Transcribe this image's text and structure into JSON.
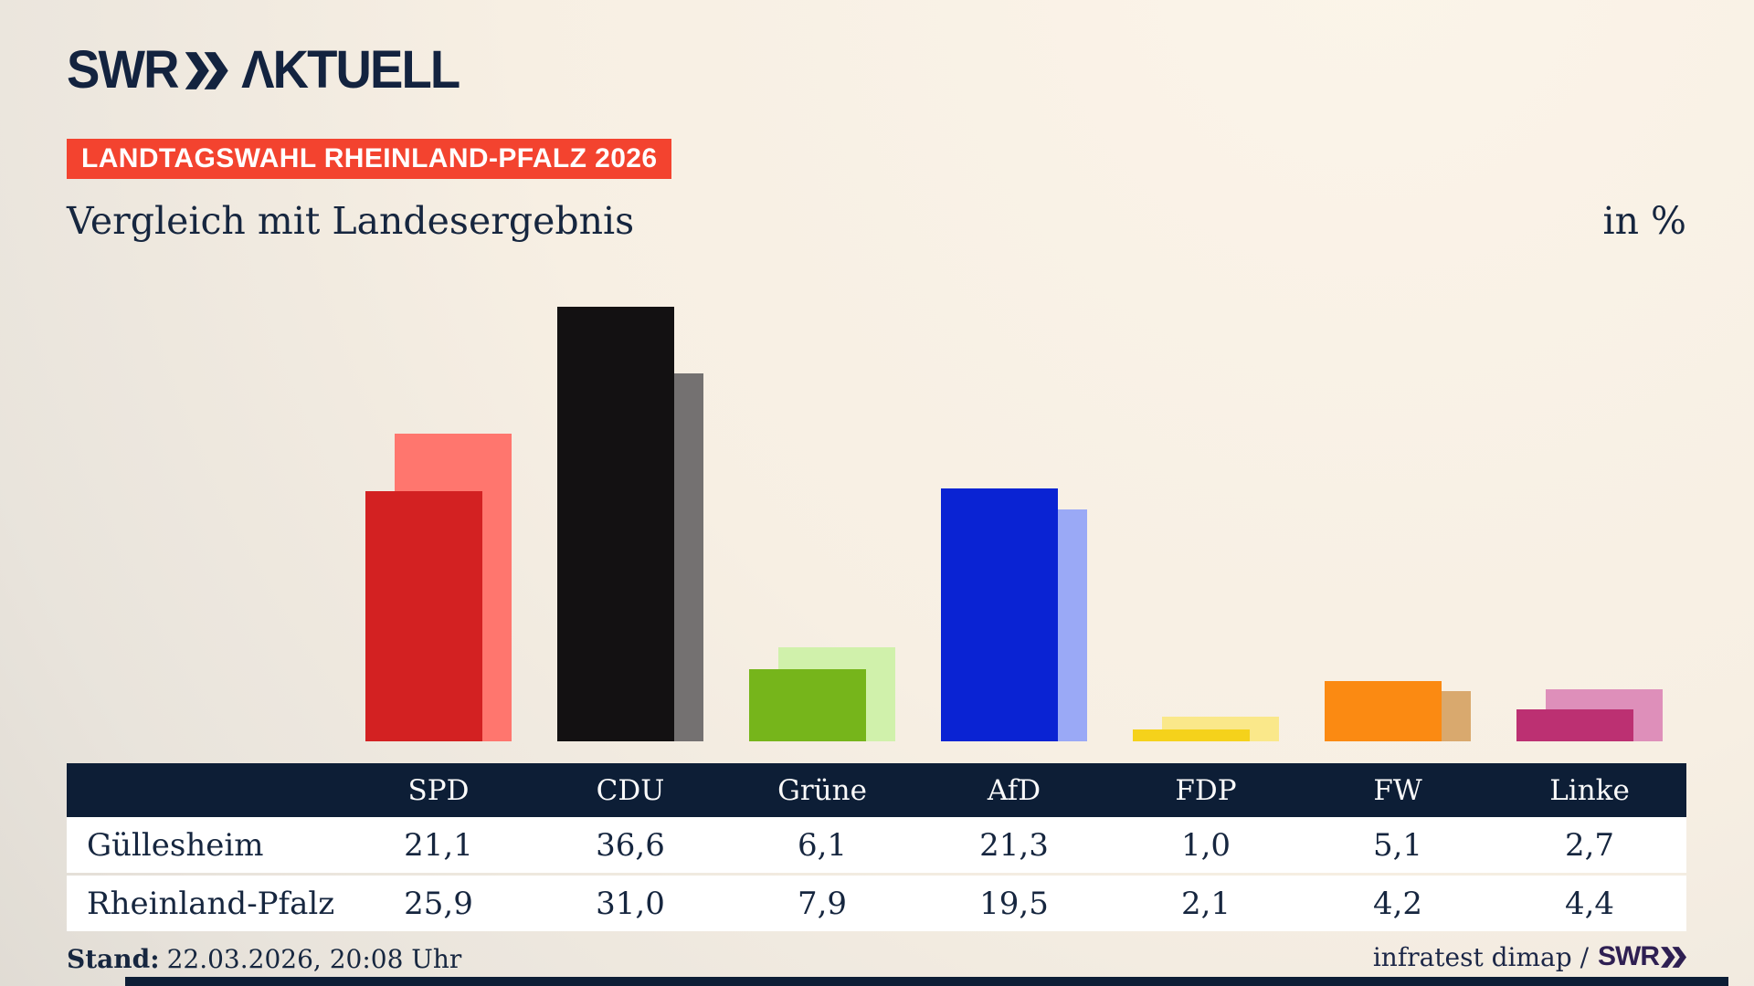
{
  "brand": {
    "name": "SWR",
    "suffix": "ΛKTUELL"
  },
  "badge": {
    "label": "LANDTAGSWAHL RHEINLAND-PFALZ 2026"
  },
  "title": "Vergleich mit Landesergebnis",
  "unit_label": "in %",
  "chart_data": {
    "type": "bar",
    "categories": [
      "SPD",
      "CDU",
      "Grüne",
      "AfD",
      "FDP",
      "FW",
      "Linke"
    ],
    "series": [
      {
        "name": "Güllesheim",
        "values": [
          21.1,
          36.6,
          6.1,
          21.3,
          1.0,
          5.1,
          2.7
        ]
      },
      {
        "name": "Rheinland-Pfalz",
        "values": [
          25.9,
          31.0,
          7.9,
          19.5,
          2.1,
          4.2,
          4.4
        ]
      }
    ],
    "unit": "%",
    "ylim": [
      0,
      40
    ],
    "grid": false,
    "axes_hidden": true,
    "legend_position": "table-rows",
    "colors": {
      "guellesheim": [
        "#d32122",
        "#131112",
        "#76b51b",
        "#0a23d3",
        "#f5d21b",
        "#fb8a12",
        "#bc3072"
      ],
      "rheinland_pfalz": [
        "#ff766e",
        "#747171",
        "#d0f1ab",
        "#9aa9f6",
        "#fae88a",
        "#d9a96e",
        "#de8fba"
      ]
    },
    "accent_colors": {
      "badge_red": "#f3432f",
      "navy": "#0d1e36"
    }
  },
  "table": {
    "columns": [
      "SPD",
      "CDU",
      "Grüne",
      "AfD",
      "FDP",
      "FW",
      "Linke"
    ],
    "rows": [
      {
        "label": "Güllesheim",
        "values": [
          "21,1",
          "36,6",
          "6,1",
          "21,3",
          "1,0",
          "5,1",
          "2,7"
        ]
      },
      {
        "label": "Rheinland-Pfalz",
        "values": [
          "25,9",
          "31,0",
          "7,9",
          "19,5",
          "2,1",
          "4,2",
          "4,4"
        ]
      }
    ]
  },
  "footer": {
    "stand_label": "Stand:",
    "stand_value": "22.03.2026, 20:08 Uhr",
    "source_text": "infratest dimap /",
    "source_brand": "SWR"
  }
}
